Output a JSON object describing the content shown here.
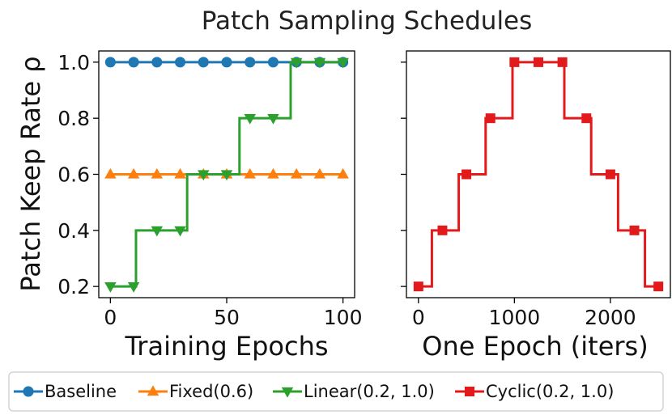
{
  "chart_data": {
    "title": "Patch Sampling Schedules",
    "ylabel": "Patch Keep Rate ρ",
    "ylim": [
      0.16,
      1.04
    ],
    "yticks": [
      0.2,
      0.4,
      0.6,
      0.8,
      1.0
    ],
    "yticklabels": [
      "0.2",
      "0.4",
      "0.6",
      "0.8",
      "1.0"
    ],
    "panels": [
      {
        "type": "line",
        "xlabel": "Training Epochs",
        "xlim": [
          -5,
          105
        ],
        "xticks": [
          0,
          50,
          100
        ],
        "xticklabels": [
          "0",
          "50",
          "100"
        ],
        "series": [
          {
            "name": "Baseline",
            "color": "#1f77b4",
            "marker": "circle",
            "step": false,
            "line": [
              [
                0,
                1.0
              ],
              [
                100,
                1.0
              ]
            ],
            "markers": [
              [
                0,
                1.0
              ],
              [
                10,
                1.0
              ],
              [
                20,
                1.0
              ],
              [
                30,
                1.0
              ],
              [
                40,
                1.0
              ],
              [
                50,
                1.0
              ],
              [
                60,
                1.0
              ],
              [
                70,
                1.0
              ],
              [
                80,
                1.0
              ],
              [
                90,
                1.0
              ],
              [
                100,
                1.0
              ]
            ]
          },
          {
            "name": "Fixed(0.6)",
            "color": "#ff7f0e",
            "marker": "triangle-up",
            "step": false,
            "line": [
              [
                0,
                0.6
              ],
              [
                100,
                0.6
              ]
            ],
            "markers": [
              [
                0,
                0.6
              ],
              [
                10,
                0.6
              ],
              [
                20,
                0.6
              ],
              [
                30,
                0.6
              ],
              [
                40,
                0.6
              ],
              [
                50,
                0.6
              ],
              [
                60,
                0.6
              ],
              [
                70,
                0.6
              ],
              [
                80,
                0.6
              ],
              [
                90,
                0.6
              ],
              [
                100,
                0.6
              ]
            ]
          },
          {
            "name": "Linear(0.2, 1.0)",
            "color": "#2ca02c",
            "marker": "triangle-down",
            "step": true,
            "line": [
              [
                0,
                0.2
              ],
              [
                11,
                0.2
              ],
              [
                11,
                0.4
              ],
              [
                33,
                0.4
              ],
              [
                33,
                0.6
              ],
              [
                55.5,
                0.6
              ],
              [
                55.5,
                0.8
              ],
              [
                77.5,
                0.8
              ],
              [
                77.5,
                1.0
              ],
              [
                100,
                1.0
              ]
            ],
            "markers": [
              [
                0,
                0.2
              ],
              [
                10,
                0.2
              ],
              [
                20,
                0.4
              ],
              [
                30,
                0.4
              ],
              [
                40,
                0.6
              ],
              [
                50,
                0.6
              ],
              [
                60,
                0.8
              ],
              [
                70,
                0.8
              ],
              [
                80,
                1.0
              ],
              [
                90,
                1.0
              ],
              [
                100,
                1.0
              ]
            ]
          }
        ]
      },
      {
        "type": "line",
        "xlabel": "One Epoch (iters)",
        "xlim": [
          -125,
          2625
        ],
        "xticks": [
          0,
          1000,
          2000
        ],
        "xticklabels": [
          "0",
          "1000",
          "2000"
        ],
        "series": [
          {
            "name": "Cyclic(0.2, 1.0)",
            "color": "#e31a1c",
            "marker": "square",
            "step": true,
            "line": [
              [
                0,
                0.2
              ],
              [
                140,
                0.2
              ],
              [
                140,
                0.4
              ],
              [
                420,
                0.4
              ],
              [
                420,
                0.6
              ],
              [
                700,
                0.6
              ],
              [
                700,
                0.8
              ],
              [
                980,
                0.8
              ],
              [
                980,
                1.0
              ],
              [
                1520,
                1.0
              ],
              [
                1520,
                0.8
              ],
              [
                1800,
                0.8
              ],
              [
                1800,
                0.6
              ],
              [
                2080,
                0.6
              ],
              [
                2080,
                0.4
              ],
              [
                2360,
                0.4
              ],
              [
                2360,
                0.2
              ],
              [
                2500,
                0.2
              ]
            ],
            "markers": [
              [
                0,
                0.2
              ],
              [
                250,
                0.4
              ],
              [
                500,
                0.6
              ],
              [
                750,
                0.8
              ],
              [
                1000,
                1.0
              ],
              [
                1250,
                1.0
              ],
              [
                1500,
                1.0
              ],
              [
                1750,
                0.8
              ],
              [
                2000,
                0.6
              ],
              [
                2250,
                0.4
              ],
              [
                2500,
                0.2
              ]
            ]
          }
        ]
      }
    ],
    "legend": {
      "placement": "bottom-center",
      "entries": [
        {
          "label": "Baseline",
          "color": "#1f77b4",
          "marker": "circle"
        },
        {
          "label": "Fixed(0.6)",
          "color": "#ff7f0e",
          "marker": "triangle-up"
        },
        {
          "label": "Linear(0.2, 1.0)",
          "color": "#2ca02c",
          "marker": "triangle-down"
        },
        {
          "label": "Cyclic(0.2, 1.0)",
          "color": "#e31a1c",
          "marker": "square"
        }
      ]
    }
  }
}
